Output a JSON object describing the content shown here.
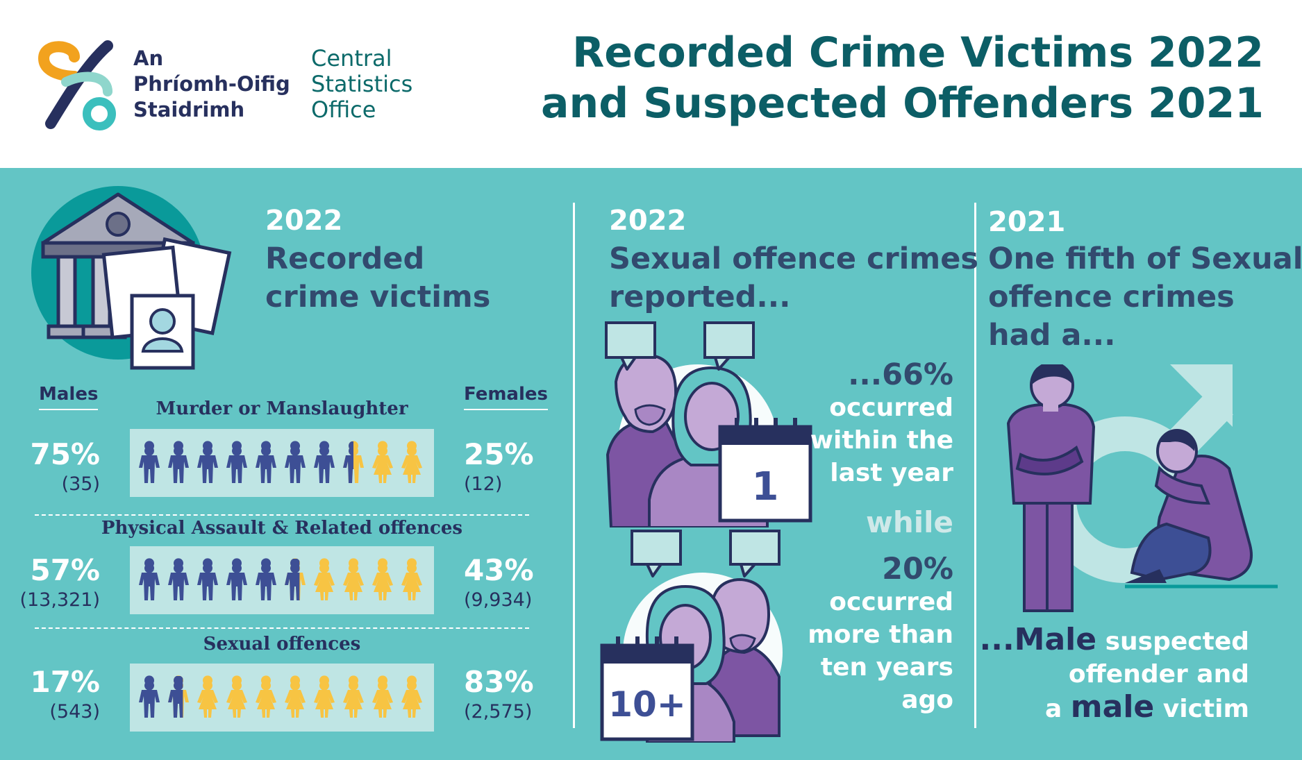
{
  "header": {
    "logo_irish": [
      "An",
      "Phríomh-Oifig",
      "Staidrimh"
    ],
    "logo_english": [
      "Central",
      "Statistics",
      "Office"
    ],
    "title_lines": [
      "Recorded Crime Victims 2022",
      "and Suspected Offenders 2021"
    ]
  },
  "colors": {
    "header_bg": "#ffffff",
    "panel_bg": "#63c5c5",
    "title": "#0c5e66",
    "navy": "#27305e",
    "male_figure": "#3d4f95",
    "female_figure": "#f7c443",
    "bar_bg": "#bfe5e4",
    "purple": "#7d55a3"
  },
  "section1": {
    "year": "2022",
    "heading_lines": [
      "Recorded",
      "crime victims"
    ],
    "icon": "courthouse-icon",
    "males_label": "Males",
    "females_label": "Females",
    "rows": [
      {
        "crime": "Murder or Manslaughter",
        "male_pct": "75%",
        "male_count": "(35)",
        "female_pct": "25%",
        "female_count": "(12)",
        "male_share": 0.75
      },
      {
        "crime": "Physical Assault & Related offences",
        "male_pct": "57%",
        "male_count": "(13,321)",
        "female_pct": "43%",
        "female_count": "(9,934)",
        "male_share": 0.57
      },
      {
        "crime": "Sexual offences",
        "male_pct": "17%",
        "male_count": "(543)",
        "female_pct": "83%",
        "female_count": "(2,575)",
        "male_share": 0.17
      }
    ]
  },
  "section2": {
    "year": "2022",
    "heading_lines": [
      "Sexual offence crimes",
      "reported..."
    ],
    "calendar_top": "1",
    "calendar_bottom": "10+",
    "stat1_big": "...66%",
    "stat1_lines": [
      "occurred",
      "within the",
      "last year"
    ],
    "connector": "while",
    "stat2_big": "20%",
    "stat2_lines": [
      "occurred",
      "more than",
      "ten years",
      "ago"
    ]
  },
  "section3": {
    "year": "2021",
    "heading_lines": [
      "One fifth of Sexual",
      "offence crimes",
      "had a..."
    ],
    "icon": "male-symbol-icon",
    "conclusion_line1_em": "...Male",
    "conclusion_line1_rest": " suspected",
    "conclusion_line2": "offender and",
    "conclusion_line3_pre": "a ",
    "conclusion_line3_em": "male",
    "conclusion_line3_post": " victim"
  }
}
